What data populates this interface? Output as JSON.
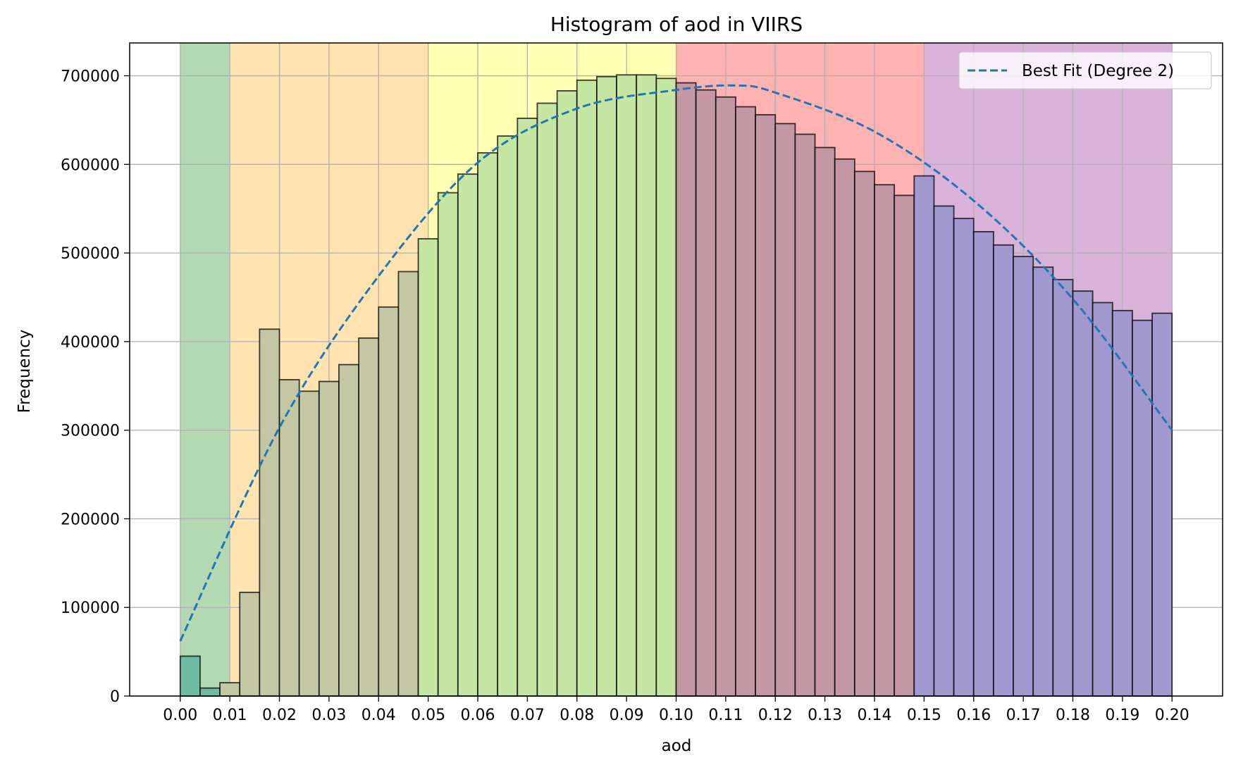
{
  "chart_data": {
    "type": "bar",
    "title": "Histogram of aod in VIIRS",
    "xlabel": "aod",
    "ylabel": "Frequency",
    "xlim": [
      -0.0102,
      0.2102
    ],
    "ylim": [
      0,
      737000
    ],
    "grid": true,
    "legend_position": "top-right",
    "x_ticks": [
      "0.00",
      "0.01",
      "0.02",
      "0.03",
      "0.04",
      "0.05",
      "0.06",
      "0.07",
      "0.08",
      "0.09",
      "0.10",
      "0.11",
      "0.12",
      "0.13",
      "0.14",
      "0.15",
      "0.16",
      "0.17",
      "0.18",
      "0.19",
      "0.20"
    ],
    "y_ticks": [
      "0",
      "100000",
      "200000",
      "300000",
      "400000",
      "500000",
      "600000",
      "700000"
    ],
    "bin_width": 0.004,
    "bin_start": 0.0,
    "values": [
      45000,
      9000,
      15000,
      117000,
      414000,
      357000,
      344000,
      355000,
      374000,
      404000,
      439000,
      479000,
      516000,
      568000,
      589000,
      613000,
      632000,
      652000,
      669000,
      683000,
      695000,
      699000,
      701000,
      701000,
      697000,
      692000,
      684000,
      676000,
      665000,
      656000,
      646000,
      634000,
      619000,
      606000,
      592000,
      577000,
      565000,
      587000,
      553000,
      539000,
      524000,
      509000,
      496000,
      484000,
      470000,
      457000,
      444000,
      435000,
      424000,
      432000
    ],
    "bands": [
      {
        "x0": 0.0,
        "x1": 0.01,
        "color": "#008000",
        "bar_color": "#6fbba1"
      },
      {
        "x0": 0.01,
        "x1": 0.05,
        "color": "#ffa500",
        "bar_color": "#c4c7a3"
      },
      {
        "x0": 0.05,
        "x1": 0.1,
        "color": "#ffff00",
        "bar_color": "#c5e5a3"
      },
      {
        "x0": 0.1,
        "x1": 0.15,
        "color": "#ff0000",
        "bar_color": "#c397a4"
      },
      {
        "x0": 0.15,
        "x1": 0.2,
        "color": "#800080",
        "bar_color": "#a098cf"
      }
    ],
    "series": [
      {
        "name": "Best Fit (Degree 2)",
        "type": "line",
        "style": "dashed",
        "color": "#1f77b4",
        "x": [
          0.0,
          0.02,
          0.04,
          0.06,
          0.08,
          0.1,
          0.112,
          0.12,
          0.14,
          0.16,
          0.18,
          0.2
        ],
        "y": [
          62000,
          303000,
          474000,
          602000,
          663000,
          684000,
          689000,
          681000,
          637000,
          559000,
          448000,
          300000
        ]
      }
    ]
  }
}
